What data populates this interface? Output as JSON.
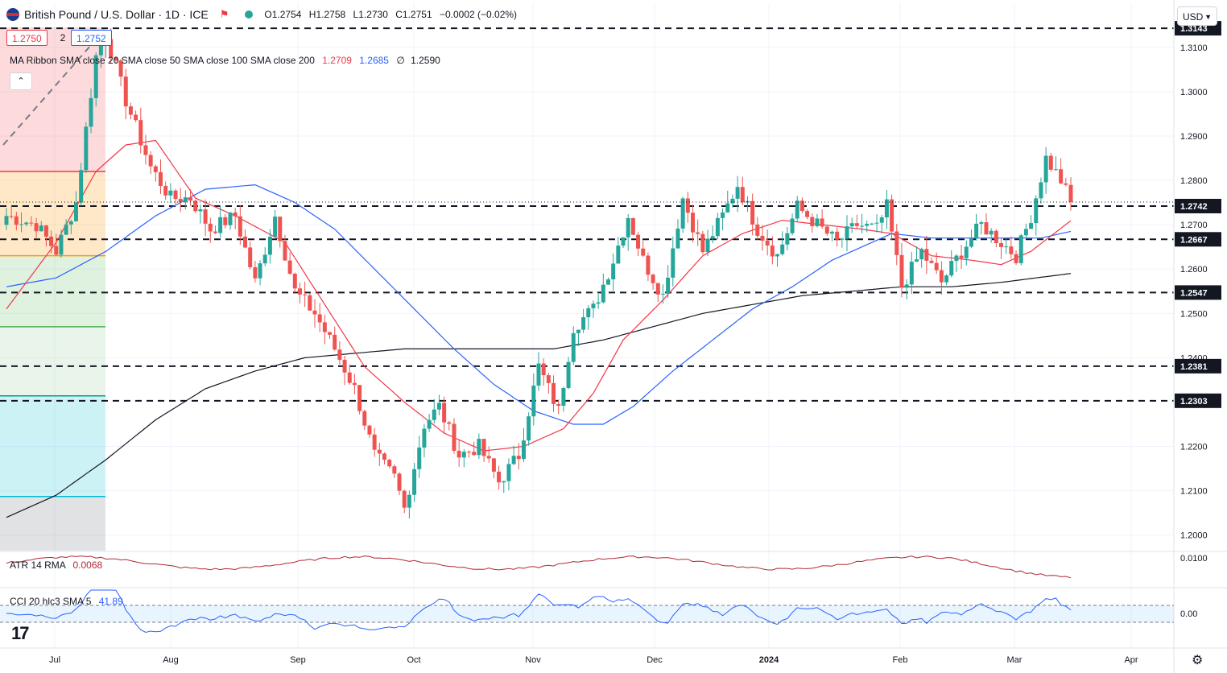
{
  "header": {
    "title": "British Pound / U.S. Dollar · 1D · ICE",
    "ohlc": {
      "o": "O1.2754",
      "h": "H1.2758",
      "l": "L1.2730",
      "c": "C1.2751",
      "chg": "−0.0002 (−0.02%)"
    },
    "sell": "1.2750",
    "spread": "2",
    "buy": "1.2752",
    "ribbon_label": "MA Ribbon SMA close 20 SMA close 50 SMA close 100 SMA close 200",
    "ribbon_v1": "1.2709",
    "ribbon_v2": "1.2685",
    "ribbon_v3": "∅",
    "ribbon_v4": "1.2590",
    "currency": "USD"
  },
  "indicators": {
    "atr_label": "ATR 14 RMA",
    "atr_value": "0.0068",
    "cci_label": "CCI 20 hlc3 SMA 5",
    "cci_value": "41.89"
  },
  "colors": {
    "up": "#26a69a",
    "down": "#ef5350",
    "ma20": "#f23645",
    "ma50": "#2962ff",
    "ma200": "#131722"
  },
  "chart_data": {
    "type": "candlestick",
    "title": "British Pound / U.S. Dollar · 1D · ICE",
    "x_ticks": [
      "Jul",
      "Aug",
      "Sep",
      "Oct",
      "Nov",
      "Dec",
      "2024",
      "Feb",
      "Mar",
      "Apr"
    ],
    "y_ticks": [
      "1.3100",
      "1.3000",
      "1.2900",
      "1.2800",
      "1.2700",
      "1.2600",
      "1.2500",
      "1.2400",
      "1.2200",
      "1.2100",
      "1.2000"
    ],
    "ylim": [
      1.1965,
      1.3145
    ],
    "levels": [
      "1.3143",
      "1.2742",
      "1.2667",
      "1.2547",
      "1.2381",
      "1.2303"
    ],
    "atr_ticks": [
      "0.0100"
    ],
    "cci_ticks": [
      "0.00"
    ],
    "close_anchors": [
      [
        0,
        1.272
      ],
      [
        6,
        1.27
      ],
      [
        10,
        1.264
      ],
      [
        14,
        1.275
      ],
      [
        18,
        1.308
      ],
      [
        20,
        1.313
      ],
      [
        24,
        1.298
      ],
      [
        29,
        1.283
      ],
      [
        33,
        1.276
      ],
      [
        37,
        1.276
      ],
      [
        41,
        1.269
      ],
      [
        46,
        1.272
      ],
      [
        50,
        1.257
      ],
      [
        54,
        1.272
      ],
      [
        58,
        1.255
      ],
      [
        62,
        1.25
      ],
      [
        66,
        1.242
      ],
      [
        70,
        1.233
      ],
      [
        74,
        1.218
      ],
      [
        78,
        1.213
      ],
      [
        80,
        1.206
      ],
      [
        84,
        1.225
      ],
      [
        87,
        1.229
      ],
      [
        91,
        1.218
      ],
      [
        95,
        1.22
      ],
      [
        99,
        1.212
      ],
      [
        103,
        1.218
      ],
      [
        107,
        1.238
      ],
      [
        111,
        1.228
      ],
      [
        114,
        1.247
      ],
      [
        118,
        1.251
      ],
      [
        122,
        1.262
      ],
      [
        125,
        1.272
      ],
      [
        128,
        1.262
      ],
      [
        132,
        1.254
      ],
      [
        136,
        1.276
      ],
      [
        140,
        1.264
      ],
      [
        144,
        1.272
      ],
      [
        147,
        1.279
      ],
      [
        151,
        1.269
      ],
      [
        155,
        1.263
      ],
      [
        159,
        1.274
      ],
      [
        163,
        1.27
      ],
      [
        167,
        1.266
      ],
      [
        171,
        1.27
      ],
      [
        175,
        1.269
      ],
      [
        177,
        1.274
      ],
      [
        180,
        1.256
      ],
      [
        184,
        1.264
      ],
      [
        188,
        1.257
      ],
      [
        192,
        1.264
      ],
      [
        196,
        1.27
      ],
      [
        200,
        1.266
      ],
      [
        203,
        1.263
      ],
      [
        206,
        1.272
      ],
      [
        209,
        1.285
      ],
      [
        212,
        1.28
      ],
      [
        214,
        1.2751
      ]
    ],
    "ma20_anchors": [
      [
        0,
        1.251
      ],
      [
        10,
        1.266
      ],
      [
        18,
        1.282
      ],
      [
        24,
        1.288
      ],
      [
        30,
        1.289
      ],
      [
        38,
        1.276
      ],
      [
        46,
        1.272
      ],
      [
        56,
        1.266
      ],
      [
        64,
        1.252
      ],
      [
        72,
        1.238
      ],
      [
        80,
        1.23
      ],
      [
        88,
        1.223
      ],
      [
        96,
        1.219
      ],
      [
        104,
        1.22
      ],
      [
        112,
        1.224
      ],
      [
        118,
        1.232
      ],
      [
        124,
        1.244
      ],
      [
        132,
        1.253
      ],
      [
        140,
        1.263
      ],
      [
        148,
        1.268
      ],
      [
        156,
        1.271
      ],
      [
        164,
        1.27
      ],
      [
        172,
        1.269
      ],
      [
        178,
        1.268
      ],
      [
        186,
        1.263
      ],
      [
        194,
        1.262
      ],
      [
        200,
        1.261
      ],
      [
        206,
        1.264
      ],
      [
        214,
        1.2709
      ]
    ],
    "ma50_anchors": [
      [
        0,
        1.256
      ],
      [
        10,
        1.258
      ],
      [
        20,
        1.264
      ],
      [
        30,
        1.272
      ],
      [
        40,
        1.278
      ],
      [
        50,
        1.279
      ],
      [
        58,
        1.275
      ],
      [
        66,
        1.269
      ],
      [
        74,
        1.26
      ],
      [
        82,
        1.251
      ],
      [
        90,
        1.242
      ],
      [
        98,
        1.234
      ],
      [
        106,
        1.228
      ],
      [
        114,
        1.225
      ],
      [
        120,
        1.225
      ],
      [
        126,
        1.229
      ],
      [
        134,
        1.237
      ],
      [
        142,
        1.244
      ],
      [
        150,
        1.251
      ],
      [
        158,
        1.256
      ],
      [
        166,
        1.262
      ],
      [
        172,
        1.265
      ],
      [
        178,
        1.268
      ],
      [
        186,
        1.267
      ],
      [
        194,
        1.267
      ],
      [
        202,
        1.267
      ],
      [
        208,
        1.267
      ],
      [
        214,
        1.2685
      ]
    ],
    "ma200_anchors": [
      [
        0,
        1.204
      ],
      [
        10,
        1.209
      ],
      [
        20,
        1.217
      ],
      [
        30,
        1.226
      ],
      [
        40,
        1.233
      ],
      [
        50,
        1.237
      ],
      [
        60,
        1.24
      ],
      [
        70,
        1.241
      ],
      [
        80,
        1.242
      ],
      [
        90,
        1.242
      ],
      [
        100,
        1.242
      ],
      [
        110,
        1.242
      ],
      [
        120,
        1.244
      ],
      [
        130,
        1.247
      ],
      [
        140,
        1.25
      ],
      [
        150,
        1.252
      ],
      [
        160,
        1.254
      ],
      [
        170,
        1.255
      ],
      [
        180,
        1.256
      ],
      [
        190,
        1.256
      ],
      [
        200,
        1.257
      ],
      [
        214,
        1.259
      ]
    ]
  }
}
